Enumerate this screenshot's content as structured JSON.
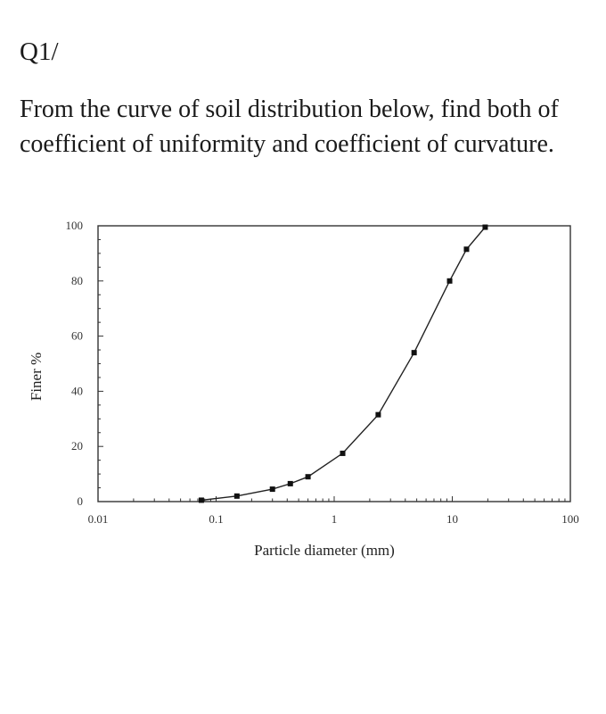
{
  "question": {
    "number": "Q1/",
    "text": "From the curve of soil distribution below, find both of coefficient of uniformity and coefficient of curvature."
  },
  "chart_data": {
    "type": "line",
    "xscale": "log",
    "xlabel": "Particle diameter (mm)",
    "ylabel": "Finer %",
    "xlim": [
      0.01,
      100
    ],
    "ylim": [
      0,
      100
    ],
    "xticks": [
      "0.01",
      "0.1",
      "1",
      "10",
      "100"
    ],
    "yticks": [
      "0",
      "20",
      "40",
      "60",
      "80",
      "100"
    ],
    "grid": false,
    "series": [
      {
        "points": [
          {
            "x": 0.075,
            "y": 0.5
          },
          {
            "x": 0.15,
            "y": 2
          },
          {
            "x": 0.3,
            "y": 4.5
          },
          {
            "x": 0.425,
            "y": 6.5
          },
          {
            "x": 0.6,
            "y": 9
          },
          {
            "x": 1.18,
            "y": 17.5
          },
          {
            "x": 2.36,
            "y": 31.5
          },
          {
            "x": 4.75,
            "y": 54
          },
          {
            "x": 9.5,
            "y": 80
          },
          {
            "x": 13.2,
            "y": 91.5
          },
          {
            "x": 19,
            "y": 99.5
          }
        ]
      }
    ]
  }
}
